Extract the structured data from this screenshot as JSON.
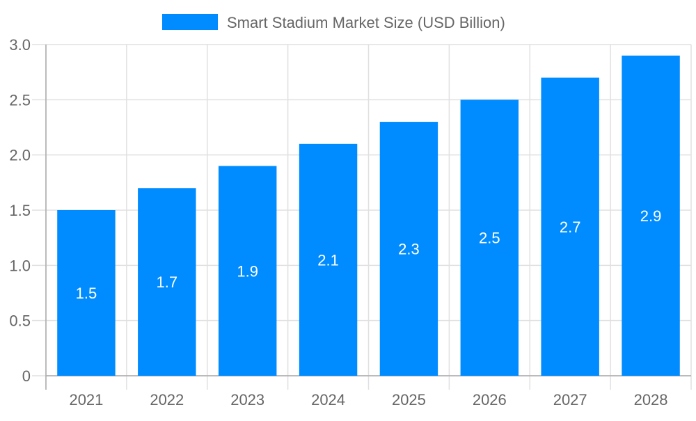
{
  "chart_data": {
    "type": "bar",
    "title": "",
    "xlabel": "",
    "ylabel": "",
    "categories": [
      "2021",
      "2022",
      "2023",
      "2024",
      "2025",
      "2026",
      "2027",
      "2028"
    ],
    "series": [
      {
        "name": "Smart Stadium Market Size (USD Billion)",
        "values": [
          1.5,
          1.7,
          1.9,
          2.1,
          2.3,
          2.5,
          2.7,
          2.9
        ],
        "color": "#008CFF"
      }
    ],
    "ylim": [
      0,
      3.0
    ],
    "yticks": [
      "0",
      "0.5",
      "1.0",
      "1.5",
      "2.0",
      "2.5",
      "3.0"
    ],
    "grid": true,
    "legend": "top-center",
    "data_labels": true
  }
}
